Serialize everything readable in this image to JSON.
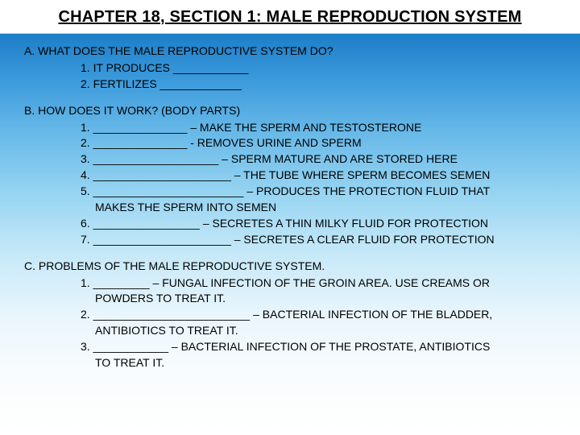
{
  "title": "CHAPTER 18, SECTION 1:  MALE REPRODUCTION SYSTEM",
  "sectionA": {
    "head": "A.  WHAT DOES THE MALE REPRODUCTIVE SYSTEM DO?",
    "items": [
      "1.  IT PRODUCES ____________",
      "2.  FERTILIZES _____________"
    ]
  },
  "sectionB": {
    "head": "B.  HOW DOES IT WORK?  (BODY PARTS)",
    "items": [
      "1.  _______________ – MAKE THE SPERM AND TESTOSTERONE",
      "2.  _______________  -  REMOVES URINE AND SPERM",
      "3.  ____________________ – SPERM MATURE AND ARE STORED HERE",
      "4.  ______________________ – THE TUBE WHERE SPERM BECOMES SEMEN",
      "5.  ________________________ – PRODUCES THE PROTECTION FLUID THAT",
      "MAKES THE SPERM INTO SEMEN",
      "6.  _________________ – SECRETES A THIN MILKY FLUID FOR PROTECTION",
      "7.  ______________________  –  SECRETES A CLEAR FLUID FOR PROTECTION"
    ]
  },
  "sectionC": {
    "head": "C.  PROBLEMS OF THE MALE REPRODUCTIVE SYSTEM.",
    "items": [
      "1.  _________  –  FUNGAL INFECTION OF THE GROIN AREA.  USE CREAMS OR",
      "POWDERS TO TREAT IT.",
      "2.  _________________________  –  BACTERIAL INFECTION OF THE BLADDER,",
      "ANTIBIOTICS TO TREAT IT.",
      "3.  ____________  –  BACTERIAL INFECTION OF THE PROSTATE, ANTIBIOTICS",
      "TO TREAT IT."
    ]
  },
  "colors": {
    "text": "#000000",
    "title_bg": "#ffffff"
  }
}
